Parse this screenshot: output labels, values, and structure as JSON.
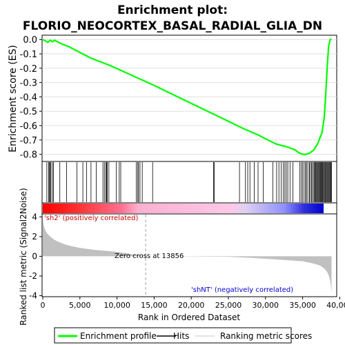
{
  "chart_data": {
    "type": "line",
    "title_line1": "Enrichment plot:",
    "title_line2": "FLORIO_NEOCORTEX_BASAL_RADIAL_GLIA_DN",
    "es_panel": {
      "ylabel": "Enrichment score (ES)",
      "ylim": [
        -0.85,
        0.03
      ],
      "yticks": [
        "0.0",
        "-0.1",
        "-0.2",
        "-0.3",
        "-0.4",
        "-0.5",
        "-0.6",
        "-0.7",
        "-0.8"
      ],
      "ytick_values": [
        0.0,
        -0.1,
        -0.2,
        -0.3,
        -0.4,
        -0.5,
        -0.6,
        -0.7,
        -0.8
      ],
      "series": [
        {
          "name": "Enrichment profile",
          "color": "#00ff00",
          "x": [
            0,
            700,
            1000,
            1300,
            1600,
            2500,
            3500,
            5000,
            6500,
            8000,
            9000,
            10500,
            12000,
            13500,
            15000,
            17000,
            19000,
            21000,
            23000,
            25000,
            27000,
            29000,
            30500,
            31500,
            33000,
            34000,
            34500,
            35000,
            35500,
            36000,
            36500,
            37000,
            37300,
            37600,
            37900,
            38100,
            38300,
            38500,
            38700,
            38900
          ],
          "y": [
            0.0,
            -0.02,
            -0.005,
            -0.015,
            -0.005,
            -0.03,
            -0.05,
            -0.09,
            -0.13,
            -0.16,
            -0.18,
            -0.215,
            -0.25,
            -0.285,
            -0.32,
            -0.37,
            -0.42,
            -0.47,
            -0.52,
            -0.57,
            -0.62,
            -0.665,
            -0.705,
            -0.73,
            -0.75,
            -0.77,
            -0.79,
            -0.8,
            -0.8,
            -0.79,
            -0.77,
            -0.73,
            -0.69,
            -0.65,
            -0.55,
            -0.4,
            -0.2,
            -0.05,
            0.0,
            0.0
          ]
        }
      ]
    },
    "hits_panel": {
      "hit_positions": [
        550,
        800,
        900,
        1000,
        1100,
        1300,
        1450,
        2300,
        3200,
        4600,
        5400,
        5900,
        6500,
        7200,
        8100,
        8300,
        8500,
        8600,
        8700,
        8900,
        9900,
        10300,
        10500,
        12600,
        12800,
        12900,
        13100,
        13400,
        14800,
        23000,
        23100,
        26500,
        27300,
        27600,
        27900,
        28500,
        29000,
        29700,
        31000,
        31500,
        31800,
        32100,
        32400,
        32600,
        32800,
        33000,
        33300,
        33700,
        34600,
        34800,
        35000,
        35200,
        35400,
        35500,
        35700,
        35900,
        36000,
        36200,
        36300,
        36500,
        36600,
        36700,
        36800,
        36900,
        37000,
        37100,
        37200,
        37300,
        37400,
        37500,
        37600,
        37700,
        37800,
        37900,
        38000,
        38100,
        38200,
        38300,
        38400,
        38500,
        38600,
        38700,
        38800,
        38900
      ]
    },
    "ranked_panel": {
      "ylabel": "Ranked list metric (Signal2Noise)",
      "ylim": [
        -4.1,
        4.3
      ],
      "yticks": [
        "-4",
        "-2",
        "0",
        "2",
        "4"
      ],
      "ytick_values": [
        -4,
        -2,
        0,
        2,
        4
      ],
      "x": [
        0,
        100,
        300,
        600,
        1000,
        1500,
        2000,
        3000,
        4000,
        5000,
        6000,
        7000,
        8000,
        9000,
        10000,
        13856,
        20000,
        25000,
        26000,
        28000,
        30000,
        32000,
        34000,
        35000,
        36000,
        37000,
        37500,
        38000,
        38300,
        38500,
        38700,
        38800,
        38900
      ],
      "y": [
        4.0,
        3.2,
        2.7,
        2.3,
        2.0,
        1.7,
        1.5,
        1.2,
        1.0,
        0.85,
        0.75,
        0.65,
        0.58,
        0.52,
        0.45,
        0.0,
        -0.02,
        -0.05,
        -0.08,
        -0.15,
        -0.25,
        -0.35,
        -0.45,
        -0.5,
        -0.65,
        -0.85,
        -1.0,
        -1.3,
        -1.6,
        -1.9,
        -2.4,
        -3.0,
        -3.7
      ],
      "zero_cross_label": "Zero cross at 13856",
      "zero_cross_x": 13856,
      "pos_label": "'sh2' (positively correlated)",
      "neg_label": "'shNT' (negatively correlated)"
    },
    "xaxis": {
      "label": "Rank in Ordered Dataset",
      "xlim": [
        0,
        39500
      ],
      "ticks": [
        "0",
        "5,000",
        "10,000",
        "15,000",
        "20,000",
        "25,000",
        "30,000",
        "35,000",
        "40,000"
      ],
      "tick_values": [
        0,
        5000,
        10000,
        15000,
        20000,
        25000,
        30000,
        35000,
        40000
      ],
      "n_genes": 38900
    },
    "legend": {
      "placement": "bottom",
      "items": [
        {
          "label": "Enrichment profile",
          "color": "#00ff00"
        },
        {
          "label": "Hits",
          "color": "#000000"
        },
        {
          "label": "Ranking metric scores",
          "color": "#c0c0c0"
        }
      ]
    },
    "colors": {
      "positive": "#ff0000",
      "middle": "#ffc0e0",
      "negative": "#0000ff",
      "fill": "#c0c0c0",
      "pos_text": "#cc0000",
      "neg_text": "#0000cc"
    }
  }
}
